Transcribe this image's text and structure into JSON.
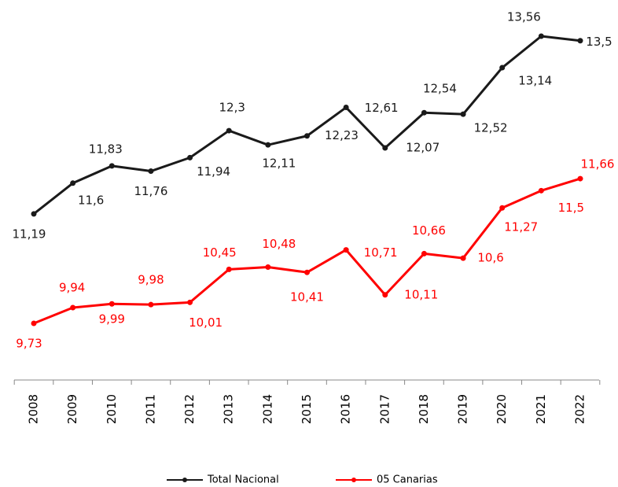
{
  "chart_data": {
    "type": "line",
    "categories": [
      "2008",
      "2009",
      "2010",
      "2011",
      "2012",
      "2013",
      "2014",
      "2015",
      "2016",
      "2017",
      "2018",
      "2019",
      "2020",
      "2021",
      "2022"
    ],
    "series": [
      {
        "name": "Total Nacional",
        "color": "#1a1a1a",
        "values": [
          11.19,
          11.6,
          11.83,
          11.76,
          11.94,
          12.3,
          12.11,
          12.23,
          12.61,
          12.07,
          12.54,
          12.52,
          13.14,
          13.56,
          13.5
        ],
        "value_labels": [
          "11,19",
          "11,6",
          "11,83",
          "11,76",
          "11,94",
          "12,3",
          "12,11",
          "12,23",
          "12,61",
          "12,07",
          "12,54",
          "12,52",
          "13,14",
          "13,56",
          "13,5"
        ]
      },
      {
        "name": "05 Canarias",
        "color": "#ff0000",
        "values": [
          9.73,
          9.94,
          9.99,
          9.98,
          10.01,
          10.45,
          10.48,
          10.41,
          10.71,
          10.11,
          10.66,
          10.6,
          11.27,
          11.5,
          11.66
        ],
        "value_labels": [
          "9,73",
          "9,94",
          "9,99",
          "9,98",
          "10,01",
          "10,45",
          "10,48",
          "10,41",
          "10,71",
          "10,11",
          "10,66",
          "10,6",
          "11,27",
          "11,5",
          "11,66"
        ]
      }
    ]
  }
}
